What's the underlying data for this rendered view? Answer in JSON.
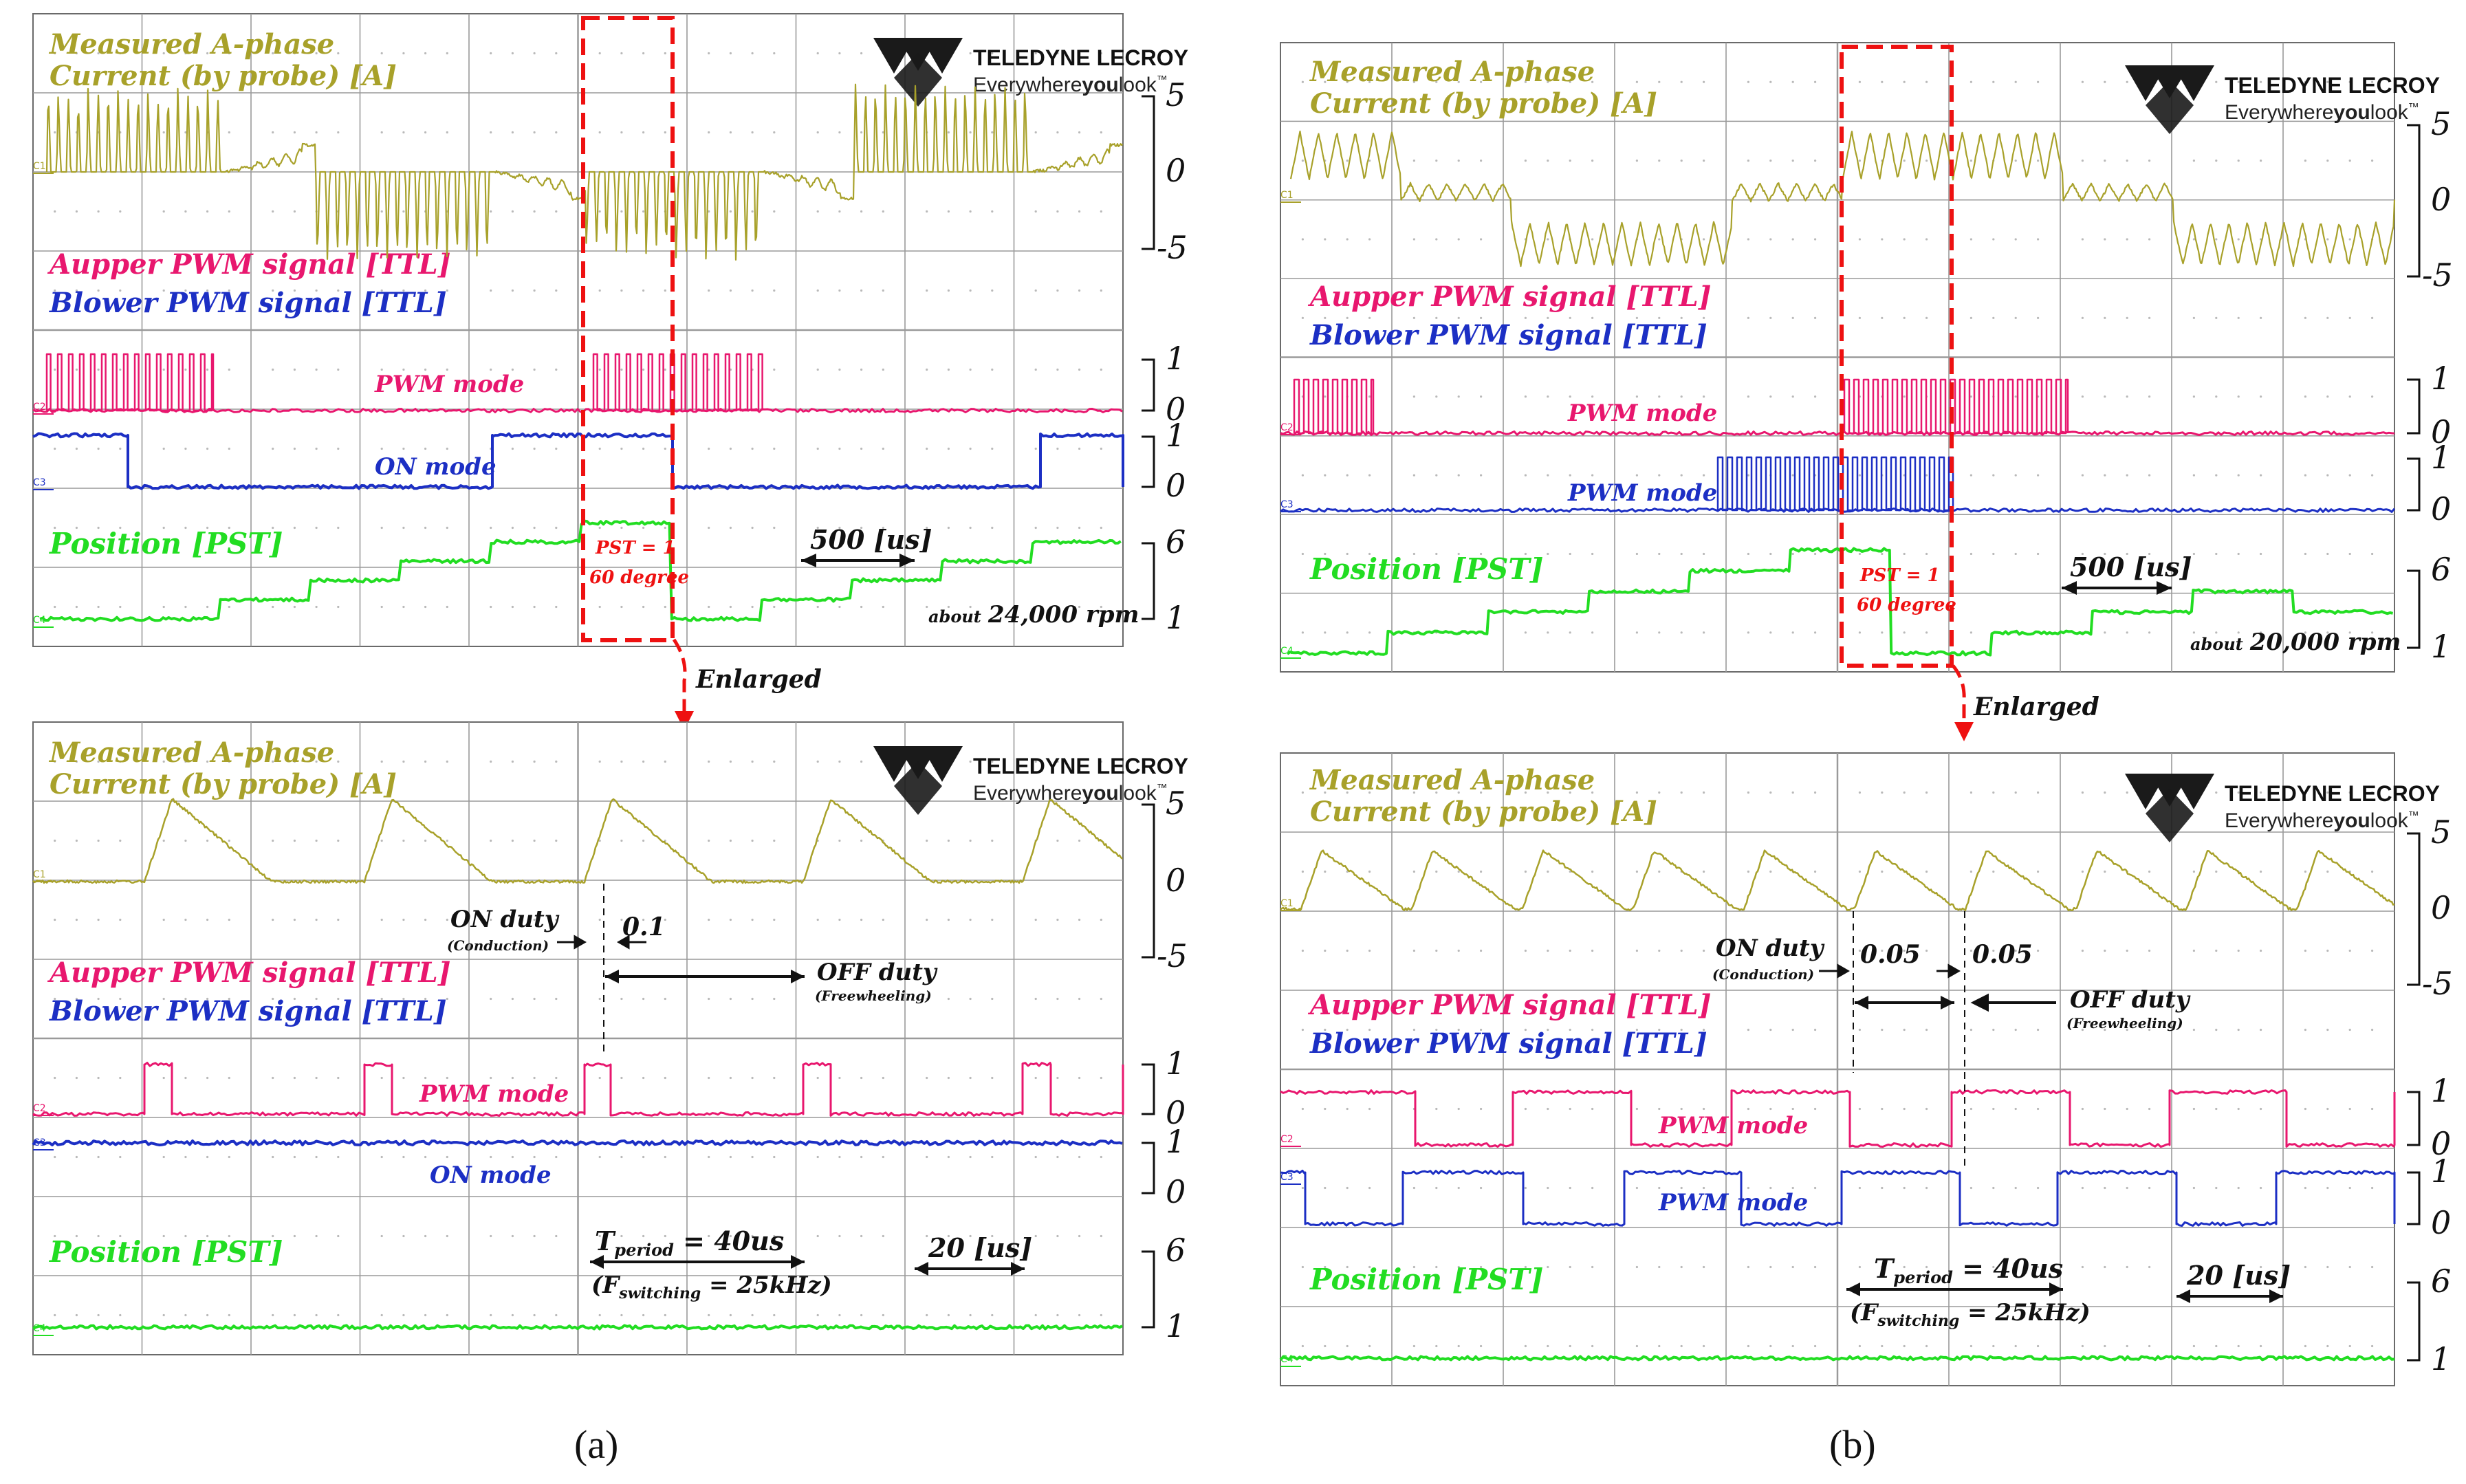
{
  "labels": {
    "current": [
      "Measured A-phase",
      "Current (by probe) [A]"
    ],
    "upper_a": "A",
    "upper_rest": "upper PWM signal [TTL]",
    "lower_b": "B",
    "lower_rest": "lower PWM signal [TTL]",
    "position": "Position [PST]",
    "logo_top": "TELEDYNE LECROY",
    "logo_a": "Everywhere",
    "logo_b": "you",
    "logo_c": "look",
    "logo_tm": "™",
    "c1": "C1",
    "c2": "C2",
    "c3": "C3",
    "c4": "C4",
    "enlarged": "Enlarged",
    "pst": "PST = 1",
    "deg": "60 degree",
    "t500": "500 [us]",
    "t20": "20 [us]",
    "on_duty": "ON duty",
    "conduction": "(Conduction)",
    "off_duty": "OFF duty",
    "freewheeling": "(Freewheeling)",
    "tperiod_t": "T",
    "tperiod_sub": "period",
    "tperiod_val": " = 40us",
    "fsw_open": "(F",
    "fsw_sub": "switching",
    "fsw_val": " = 25kHz)"
  },
  "panel_a": {
    "caption": "(a)",
    "rpm_about": "about",
    "rpm_val": "24,000 rpm",
    "duty": "0.1",
    "c2_mode_top": "PWM mode",
    "c3_mode_top": "ON mode",
    "c2_mode_bot": "PWM mode",
    "c3_mode_bot": "ON mode"
  },
  "panel_b": {
    "caption": "(b)",
    "rpm_about": "about",
    "rpm_val": "20,000 rpm",
    "duty1": "0.05",
    "duty2": "0.05",
    "c2_mode_top": "PWM mode",
    "c3_mode_top": "PWM mode",
    "c2_mode_bot": "PWM mode",
    "c3_mode_bot": "PWM mode"
  },
  "scales": {
    "current": [
      "5",
      "0",
      "-5"
    ],
    "ttl": [
      "1",
      "0"
    ],
    "pst": [
      "6",
      "1"
    ]
  },
  "colors": {
    "current": "#a8a12a",
    "upper": "#e8176e",
    "lower": "#1c2fc4",
    "position": "#22dd22",
    "annot_red": "#ee1111",
    "grid": "#9a9a9a"
  },
  "chart_data": [
    {
      "type": "line",
      "panel": "a",
      "view": "overview",
      "time_per_division_us": 500,
      "series": [
        {
          "name": "Measured A-phase Current (by probe) [A]",
          "unit": "A",
          "range": [
            -5,
            5
          ]
        },
        {
          "name": "Aupper PWM signal [TTL]",
          "range": [
            0,
            1
          ]
        },
        {
          "name": "Blower PWM signal [TTL]",
          "range": [
            0,
            1
          ]
        },
        {
          "name": "Position [PST]",
          "range": [
            1,
            6
          ],
          "steps": [
            1,
            2,
            3,
            4,
            5,
            6,
            1,
            2,
            3,
            4,
            5,
            6
          ]
        }
      ],
      "speed_rpm": 24000
    },
    {
      "type": "line",
      "panel": "a",
      "view": "enlarged",
      "time_per_division_us": 20,
      "period_us": 40,
      "switching_frequency_khz": 25,
      "on_duty": 0.1,
      "peak_current_a": 5
    },
    {
      "type": "line",
      "panel": "b",
      "view": "overview",
      "time_per_division_us": 500,
      "series": [
        {
          "name": "Measured A-phase Current (by probe) [A]",
          "unit": "A",
          "range": [
            -5,
            5
          ]
        },
        {
          "name": "Aupper PWM signal [TTL]",
          "range": [
            0,
            1
          ]
        },
        {
          "name": "Blower PWM signal [TTL]",
          "range": [
            0,
            1
          ]
        },
        {
          "name": "Position [PST]",
          "range": [
            1,
            6
          ]
        }
      ],
      "speed_rpm": 20000
    },
    {
      "type": "line",
      "panel": "b",
      "view": "enlarged",
      "time_per_division_us": 20,
      "period_us": 40,
      "switching_frequency_khz": 25,
      "on_duty": 0.05
    }
  ]
}
